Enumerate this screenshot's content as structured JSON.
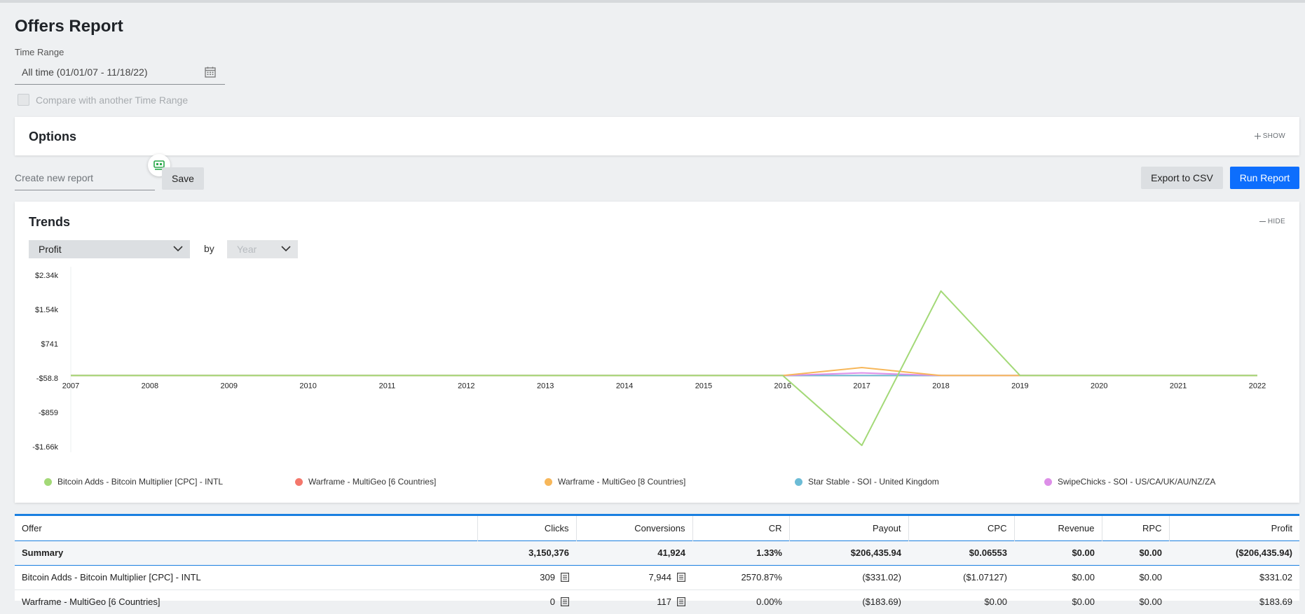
{
  "page": {
    "title": "Offers Report"
  },
  "time_range": {
    "label": "Time Range",
    "value": "All time (01/01/07 - 11/18/22)",
    "compare_label": "Compare with another Time Range"
  },
  "options": {
    "title": "Options",
    "toggle_label": "SHOW"
  },
  "report": {
    "create_placeholder": "Create new report",
    "save_label": "Save",
    "export_label": "Export to CSV",
    "run_label": "Run Report"
  },
  "trends": {
    "title": "Trends",
    "toggle_label": "HIDE",
    "metric": "Profit",
    "by_label": "by",
    "period": "Year"
  },
  "chart_data": {
    "type": "line",
    "x": [
      "2007",
      "2008",
      "2009",
      "2010",
      "2011",
      "2012",
      "2013",
      "2014",
      "2015",
      "2016",
      "2017",
      "2018",
      "2019",
      "2020",
      "2021",
      "2022"
    ],
    "y_ticks": [
      "$2.34k",
      "$1.54k",
      "$741",
      "-$58.8",
      "-$859",
      "-$1.66k"
    ],
    "y_tick_values": [
      2340,
      1540,
      741,
      -58.8,
      -859,
      -1660
    ],
    "ylim": [
      -1660,
      2340
    ],
    "grid": false,
    "legend_position": "bottom",
    "series": [
      {
        "name": "Bitcoin Adds - Bitcoin Multiplier [CPC] - INTL",
        "color": "#a3d977",
        "values": [
          0,
          0,
          0,
          0,
          0,
          0,
          0,
          0,
          0,
          0,
          -1630,
          1970,
          0,
          0,
          0,
          0
        ]
      },
      {
        "name": "Warframe - MultiGeo [6 Countries]",
        "color": "#f4776b",
        "values": [
          0,
          0,
          0,
          0,
          0,
          0,
          0,
          0,
          0,
          0,
          0,
          0,
          0,
          0,
          0,
          0
        ]
      },
      {
        "name": "Warframe - MultiGeo [8 Countries]",
        "color": "#f7b75a",
        "values": [
          0,
          0,
          0,
          0,
          0,
          0,
          0,
          0,
          0,
          0,
          184,
          0,
          0,
          0,
          0,
          0
        ]
      },
      {
        "name": "Star Stable - SOI - United Kingdom",
        "color": "#6cbcd6",
        "values": [
          0,
          0,
          0,
          0,
          0,
          0,
          0,
          0,
          0,
          0,
          0,
          0,
          0,
          0,
          0,
          0
        ]
      },
      {
        "name": "SwipeChicks - SOI - US/CA/UK/AU/NZ/ZA",
        "color": "#dd8fe8",
        "values": [
          0,
          0,
          0,
          0,
          0,
          0,
          0,
          0,
          0,
          0,
          60,
          0,
          0,
          0,
          0,
          0
        ]
      }
    ]
  },
  "table": {
    "columns": [
      "Offer",
      "Clicks",
      "Conversions",
      "CR",
      "Payout",
      "CPC",
      "Revenue",
      "RPC",
      "Profit"
    ],
    "summary": [
      "Summary",
      "3,150,376",
      "41,924",
      "1.33%",
      "$206,435.94",
      "$0.06553",
      "$0.00",
      "$0.00",
      "($206,435.94)"
    ],
    "rows": [
      [
        "Bitcoin Adds - Bitcoin Multiplier [CPC] - INTL",
        "309",
        "7,944",
        "2570.87%",
        "($331.02)",
        "($1.07127)",
        "$0.00",
        "$0.00",
        "$331.02"
      ],
      [
        "Warframe - MultiGeo [6 Countries]",
        "0",
        "117",
        "0.00%",
        "($183.69)",
        "$0.00",
        "$0.00",
        "$0.00",
        "$183.69"
      ]
    ]
  }
}
